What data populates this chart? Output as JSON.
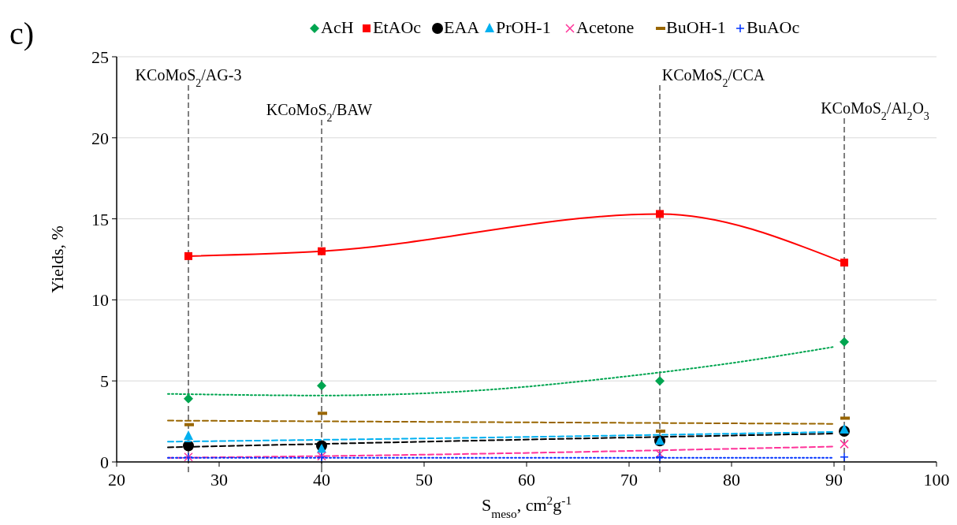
{
  "chart_data": {
    "type": "scatter",
    "xlabel": "S$_{meso}$, cm$^{2}$g$^{-1}$",
    "ylabel": "Yields, %",
    "annotations": [
      "c)"
    ],
    "xlim": [
      20,
      100
    ],
    "xticks": [
      20,
      30,
      40,
      50,
      60,
      70,
      80,
      90,
      100
    ],
    "ylim": [
      0,
      25
    ],
    "yticks": [
      0,
      5,
      10,
      15,
      20,
      25
    ],
    "grid": "y",
    "legend": "top",
    "series": [
      {
        "name": "AcH",
        "marker": "diamond",
        "color": "#00a550",
        "x": [
          27,
          40,
          73,
          91
        ],
        "values": [
          3.9,
          4.7,
          5.0,
          7.4
        ]
      },
      {
        "name": "EtAOc",
        "type": "line",
        "marker": "square",
        "line_style": "solid",
        "color": "#ff0000",
        "x": [
          27,
          40,
          73,
          91
        ],
        "values": [
          12.7,
          13.0,
          15.3,
          12.3
        ]
      },
      {
        "name": "EAA",
        "marker": "circle",
        "color": "#000000",
        "x": [
          27,
          40,
          73,
          91
        ],
        "values": [
          1.0,
          1.0,
          1.3,
          1.9
        ]
      },
      {
        "name": "PrOH-1",
        "marker": "triangle",
        "color": "#00b0f0",
        "x": [
          27,
          40,
          73,
          91
        ],
        "values": [
          1.6,
          0.8,
          1.3,
          2.0
        ]
      },
      {
        "name": "Acetone",
        "marker": "cross",
        "color": "#ff3399",
        "x": [
          27,
          40,
          73,
          91
        ],
        "values": [
          0.3,
          0.35,
          0.5,
          1.1
        ]
      },
      {
        "name": "BuOH-1",
        "marker": "square",
        "color": "#996600",
        "x": [
          27,
          40,
          73,
          91
        ],
        "values": [
          2.3,
          3.0,
          1.9,
          2.7
        ]
      },
      {
        "name": "BuAOc",
        "marker": "plus",
        "color": "#0033ff",
        "x": [
          27,
          40,
          73,
          91
        ],
        "values": [
          0.3,
          0.3,
          0.3,
          0.3
        ]
      },
      {
        "type": "line",
        "marker": "none",
        "line_style": "dotted",
        "color": "#00a550",
        "x": [
          25,
          40,
          55,
          70,
          80,
          90
        ],
        "values": [
          4.2,
          4.1,
          4.4,
          5.3,
          6.1,
          7.1
        ]
      },
      {
        "type": "line",
        "marker": "none",
        "line_style": "dashed",
        "color": "#000000",
        "x": [
          25,
          50,
          90
        ],
        "values": [
          0.9,
          1.25,
          1.75
        ]
      },
      {
        "type": "line",
        "marker": "none",
        "line_style": "dashed",
        "color": "#00b0f0",
        "x": [
          25,
          50,
          90
        ],
        "values": [
          1.25,
          1.45,
          1.85
        ]
      },
      {
        "type": "line",
        "marker": "none",
        "line_style": "dashed",
        "color": "#ff3399",
        "x": [
          25,
          50,
          90
        ],
        "values": [
          0.25,
          0.45,
          0.95
        ]
      },
      {
        "type": "line",
        "marker": "none",
        "line_style": "dashed",
        "color": "#996600",
        "x": [
          25,
          90
        ],
        "values": [
          2.55,
          2.35
        ]
      },
      {
        "type": "line",
        "marker": "none",
        "line_style": "dotted",
        "color": "#0033ff",
        "x": [
          25,
          90
        ],
        "values": [
          0.25,
          0.25
        ]
      }
    ],
    "ref_lines": [
      {
        "axis": "x",
        "value": 27,
        "label": "KCoMoS$_{2}$/AG-3",
        "color": "#000000",
        "line_style": "dashed"
      },
      {
        "axis": "x",
        "value": 40,
        "label": "KCoMoS$_{2}$/BAW",
        "color": "#000000",
        "line_style": "dashed"
      },
      {
        "axis": "x",
        "value": 73,
        "label": "KCoMoS$_{2}$/CCA",
        "color": "#000000",
        "line_style": "dashed"
      },
      {
        "axis": "x",
        "value": 91,
        "label": "KCoMoS$_{2}$/Al$_{2}$O$_{3}$",
        "color": "#000000",
        "line_style": "dashed"
      }
    ]
  }
}
